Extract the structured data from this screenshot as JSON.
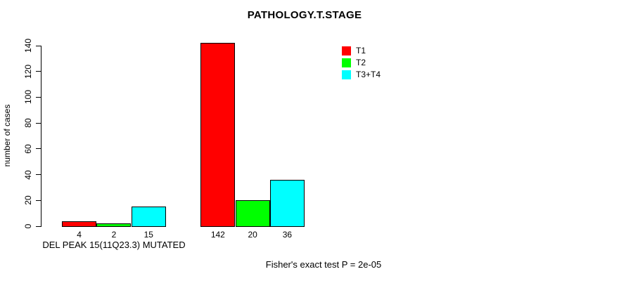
{
  "chart_data": {
    "type": "bar",
    "title": "PATHOLOGY.T.STAGE",
    "ylabel": "number of cases",
    "xlabel": "DEL PEAK 15(11Q23.3) MUTATED",
    "footer": "Fisher's exact test P = 2e-05",
    "ylim": [
      0,
      140
    ],
    "yticks": [
      0,
      20,
      40,
      60,
      80,
      100,
      120,
      140
    ],
    "grid": false,
    "legend_position": "top-right",
    "series": [
      {
        "name": "T1",
        "color": "#ff0000"
      },
      {
        "name": "T2",
        "color": "#00ff00"
      },
      {
        "name": "T3+T4",
        "color": "#00ffff"
      }
    ],
    "groups": [
      {
        "label": "DEL PEAK 15(11Q23.3) MUTATED",
        "values": [
          4,
          2,
          15
        ]
      },
      {
        "label": "",
        "values": [
          142,
          20,
          36
        ]
      }
    ]
  }
}
